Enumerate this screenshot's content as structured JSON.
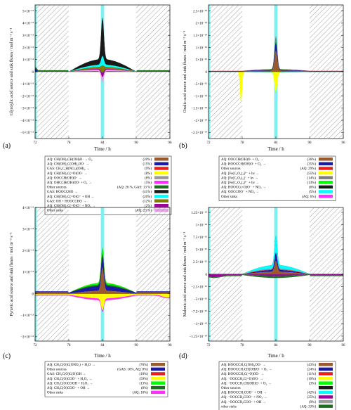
{
  "figure": {
    "x_axis_label": "Time / h",
    "x_ticks": [
      "72",
      "78",
      "84",
      "90",
      "96"
    ]
  },
  "chart_data": [
    {
      "type": "area",
      "panel_label": "(a)",
      "ylabel": "Glyoxylic acid source and sink fluxes / mol m⁻³ s⁻¹",
      "xlabel": "Time / h",
      "xlim": [
        72,
        96
      ],
      "ylim": [
        -5.5e-13,
        5.5e-13
      ],
      "y_ticks": [
        "5×10⁻¹³",
        "4×10⁻¹³",
        "3×10⁻¹³",
        "2×10⁻¹³",
        "1×10⁻¹³",
        "0",
        "−1×10⁻¹³",
        "−2×10⁻¹³",
        "−3×10⁻¹³",
        "−4×10⁻¹³",
        "−5×10⁻¹³"
      ],
      "y_tick_values": [
        5e-13,
        4e-13,
        3e-13,
        2e-13,
        1e-13,
        0,
        -1e-13,
        -2e-13,
        -3e-13,
        -4e-13,
        -5e-13
      ],
      "night_periods": [
        [
          72.3,
          78
        ],
        [
          90,
          96
        ]
      ],
      "cloud_periods": [
        [
          72,
          72.3
        ],
        [
          83.7,
          84.3
        ]
      ],
      "legend": [
        {
          "label": "AQ: CH(OH)₂CH(OH)O· → O₂",
          "share": "(20%)",
          "color": "#9b5a2d"
        },
        {
          "label": "AQ: CH(OH)₂C(OH)₂OO· →",
          "share": "(15%)",
          "color": "#1a1aa8"
        },
        {
          "label": "GAS: CH₂C₂H(NO₃)(OH)₂ →",
          "share": "(9%)",
          "color": "#e82020"
        },
        {
          "label": "AQ: CH(OH)₂C(=O)OO· →",
          "share": "(8%)",
          "color": "#ffff00"
        },
        {
          "label": "AQ: OOCCH(OH)O· →",
          "share": "(8%)",
          "color": "#9b9b9b"
        },
        {
          "label": "AQ: OHCCH(OH)OO· + O₂ →",
          "share": "(5%)",
          "color": "#ff30ff"
        },
        {
          "label": "Other sources",
          "share": "(AQ: 26 %, GAS: 13 %)",
          "color": "#1d6e1d"
        },
        {
          "label": "GAS: HOOCCHO →",
          "share": "(41%)",
          "color": "#1a1a1a"
        },
        {
          "label": "AQ: CH(OH)₂C(=O)O⁻ + OH →",
          "share": "(20%)",
          "color": "#00ffff"
        },
        {
          "label": "GAS: OH + HOOCCHO →",
          "share": "(12%)",
          "color": "#808000"
        },
        {
          "label": "AQ: CH(OH)₂C(=O)O⁻ + NO₃ →",
          "share": "(2%)",
          "color": "#a000a0"
        },
        {
          "label": "Other sinks",
          "share": "(AQ: 23 %)",
          "color": "#e8a0e8"
        }
      ]
    },
    {
      "type": "area",
      "panel_label": "(b)",
      "ylabel": "Oxalic acid source and sink fluxes / mol m⁻³ s⁻¹",
      "xlabel": "Time / h",
      "xlim": [
        72,
        96
      ],
      "ylim": [
        -2.75e-14,
        2.75e-14
      ],
      "y_ticks": [
        "2.5×10⁻¹⁴",
        "2×10⁻¹⁴",
        "1.5×10⁻¹⁴",
        "1×10⁻¹⁴",
        "5×10⁻¹⁵",
        "0",
        "−5×10⁻¹⁵",
        "−1×10⁻¹⁴",
        "−1.5×10⁻¹⁴",
        "−2×10⁻¹⁴",
        "−2.5×10⁻¹⁴"
      ],
      "y_tick_values": [
        2.5e-14,
        2e-14,
        1.5e-14,
        1e-14,
        5e-15,
        0,
        -5e-15,
        -1e-14,
        -1.5e-14,
        -2e-14,
        -2.5e-14
      ],
      "night_periods": [
        [
          72.3,
          78
        ],
        [
          90,
          96
        ]
      ],
      "cloud_periods": [
        [
          72,
          72.3
        ],
        [
          83.7,
          84.3
        ]
      ],
      "legend": [
        {
          "label": "AQ: OOCCH(OH)O· + O₂ →",
          "share": "(36%)",
          "color": "#9b5a2d"
        },
        {
          "label": "AQ: HOOCCH(OH)O· + O₂ →",
          "share": "(35%)",
          "color": "#1a1aa8"
        },
        {
          "label": "Other sources",
          "share": "(AQ: 29%)",
          "color": "#e82020"
        },
        {
          "label": "AQ: [Fe(C₂O₄)₃]³⁻ + hν →",
          "share": "(55%)",
          "color": "#ffff00"
        },
        {
          "label": "AQ: [Fe(C₂O₄)₂]⁻ + hν →",
          "share": "(14%)",
          "color": "#808080"
        },
        {
          "label": "AQ: [Fe(C₂O₄)₃]³⁻ + hν →",
          "share": "(14%)",
          "color": "#00ff00"
        },
        {
          "label": "AQ: HOOCC(=O)O⁻ + NO₃ →",
          "share": "(6%)",
          "color": "#1a1a1a"
        },
        {
          "label": "AQ: OOCCOO⁻ + NO₃ →",
          "share": "(5%)",
          "color": "#00ffff"
        },
        {
          "label": "Other sinks",
          "share": "(AQ: 6%)",
          "color": "#ff30ff"
        }
      ]
    },
    {
      "type": "area",
      "panel_label": "(c)",
      "ylabel": "Pyruvic acid source and sink fluxes / mol m⁻³ s⁻¹",
      "xlabel": "Time / h",
      "xlim": [
        72,
        96
      ],
      "ylim": [
        -2.2e-13,
        4e-13
      ],
      "y_ticks": [
        "4×10⁻¹³",
        "3×10⁻¹³",
        "2×10⁻¹³",
        "1×10⁻¹³",
        "0",
        "−1×10⁻¹³",
        "−2×10⁻¹³"
      ],
      "y_tick_values": [
        4e-13,
        3e-13,
        2e-13,
        1e-13,
        0,
        -1e-13,
        -2e-13
      ],
      "night_periods": [
        [
          72.3,
          78
        ],
        [
          90,
          96
        ]
      ],
      "cloud_periods": [
        [
          72,
          72.3
        ],
        [
          83.7,
          84.3
        ]
      ],
      "legend": [
        {
          "label": "AQ: CH₃C(O)C(ONO₂) + H₂O →",
          "share": "(76%)",
          "color": "#9b5a2d"
        },
        {
          "label": "Other sources",
          "share": "(GAS: 16%, AQ: 8%)",
          "color": "#1a1aa8"
        },
        {
          "label": "GAS: CH₃C(O)C(O)OH →",
          "share": "(10%)",
          "color": "#e82020"
        },
        {
          "label": "AQ: CH₃C(O)COO⁻ + H₂O₂ →",
          "share": "(59%)",
          "color": "#ffff00"
        },
        {
          "label": "AQ: CH₃C(O)COOH + H₂O₂ →",
          "share": "(13%)",
          "color": "#00ff00"
        },
        {
          "label": "AQ: CH₃C(O)COO⁻ + OH →",
          "share": "(8%)",
          "color": "#1d6e1d"
        },
        {
          "label": "Other sinks",
          "share": "(AQ: 10%)",
          "color": "#ff30ff"
        }
      ]
    },
    {
      "type": "area",
      "panel_label": "(d)",
      "ylabel": "Malonic acid source and sink fluxes / mol m⁻³ s⁻¹",
      "xlabel": "Time / h",
      "xlim": [
        72,
        96
      ],
      "ylim": [
        -1.35e-14,
        1.35e-14
      ],
      "y_ticks": [
        "1.25×10⁻¹⁴",
        "1×10⁻¹⁴",
        "7.5×10⁻¹⁵",
        "5×10⁻¹⁵",
        "2.5×10⁻¹⁵",
        "0",
        "−2.5×10⁻¹⁵",
        "−5×10⁻¹⁵",
        "−7.5×10⁻¹⁵",
        "−1×10⁻¹⁴",
        "−1.25×10⁻¹⁴"
      ],
      "y_tick_values": [
        1.25e-14,
        1e-14,
        7.5e-15,
        5e-15,
        2.5e-15,
        0,
        -2.5e-15,
        -5e-15,
        -7.5e-15,
        -1e-14,
        -1.25e-14
      ],
      "night_periods": [
        [
          72.3,
          78
        ],
        [
          90,
          96
        ]
      ],
      "cloud_periods": [
        [
          72,
          72.3
        ],
        [
          83.7,
          84.3
        ]
      ],
      "legend": [
        {
          "label": "AQ: HOOCCH₂C(OH)₂OO· →",
          "share": "(43%)",
          "color": "#9b5a2d"
        },
        {
          "label": "AQ: HOOCCH₂CH(OH)O· + O₂ →",
          "share": "(24%)",
          "color": "#1a1aa8"
        },
        {
          "label": "AQ: HOOCCH₂C(=O)OO· →",
          "share": "(11%)",
          "color": "#e82020"
        },
        {
          "label": "AQ: ⁻OOCCH₂C(=O)OO· →",
          "share": "(10%)",
          "color": "#ffff00"
        },
        {
          "label": "AQ: ⁻OOCCH₂CH(OH)O· + O₂ →",
          "share": "(3%)",
          "color": "#00ff00"
        },
        {
          "label": "Other sources",
          "share": "",
          "color": "#1a1a1a"
        },
        {
          "label": "AQ: HOOCCH₂COO⁻ + OH →",
          "share": "(42%)",
          "color": "#00ffff"
        },
        {
          "label": "AQ: ⁻OOCCH₂COO⁻ + NO₃ →",
          "share": "(25%)",
          "color": "#a000a0"
        },
        {
          "label": "AQ: ⁻OOCCH₂COO⁻ + OH →",
          "share": "(9%)",
          "color": "#9b9b9b"
        },
        {
          "label": "other sinks",
          "share": "(AQ: 33%)",
          "color": "#1d6e1d"
        }
      ]
    }
  ]
}
